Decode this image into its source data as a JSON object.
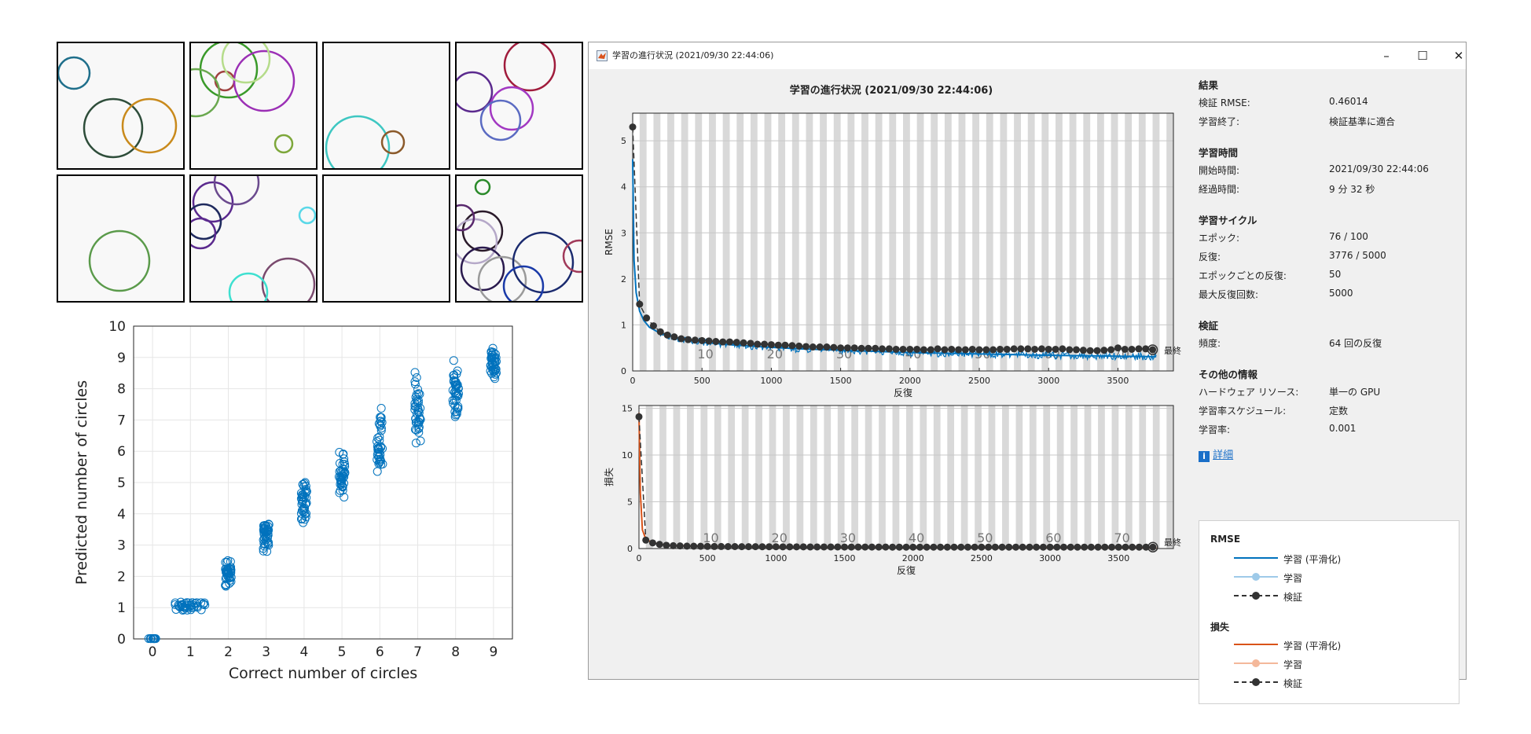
{
  "figure": {
    "circle_images": [
      {
        "circles": [
          {
            "cx": 22,
            "cy": 40,
            "r": 20,
            "color": "#1f6f8b"
          },
          {
            "cx": 72,
            "cy": 110,
            "r": 37,
            "color": "#2e4d3a"
          },
          {
            "cx": 118,
            "cy": 107,
            "r": 34,
            "color": "#c98a1c"
          }
        ]
      },
      {
        "circles": [
          {
            "cx": 50,
            "cy": 35,
            "r": 36,
            "color": "#3a9a2a"
          },
          {
            "cx": 45,
            "cy": 50,
            "r": 12,
            "color": "#a04040"
          },
          {
            "cx": 95,
            "cy": 50,
            "r": 38,
            "color": "#9b2fb5"
          },
          {
            "cx": 72,
            "cy": 22,
            "r": 30,
            "color": "#b5dc8a"
          },
          {
            "cx": 8,
            "cy": 65,
            "r": 30,
            "color": "#6aa84f"
          },
          {
            "cx": 120,
            "cy": 130,
            "r": 11,
            "color": "#7da73a"
          }
        ]
      },
      {
        "circles": [
          {
            "cx": 45,
            "cy": 135,
            "r": 40,
            "color": "#3ec7c2"
          },
          {
            "cx": 90,
            "cy": 128,
            "r": 14,
            "color": "#8b5a2b"
          }
        ]
      },
      {
        "circles": [
          {
            "cx": 95,
            "cy": 30,
            "r": 32,
            "color": "#a01c3c"
          },
          {
            "cx": 22,
            "cy": 64,
            "r": 25,
            "color": "#5b2a8e"
          },
          {
            "cx": 72,
            "cy": 85,
            "r": 27,
            "color": "#a238c2"
          },
          {
            "cx": 58,
            "cy": 100,
            "r": 25,
            "color": "#5b6bc2"
          }
        ]
      },
      {
        "circles": [
          {
            "cx": 80,
            "cy": 110,
            "r": 38,
            "color": "#5a9a4a"
          }
        ]
      },
      {
        "circles": [
          {
            "cx": 30,
            "cy": 35,
            "r": 25,
            "color": "#5b2a8e"
          },
          {
            "cx": 18,
            "cy": 60,
            "r": 22,
            "color": "#1f2a5e"
          },
          {
            "cx": 14,
            "cy": 75,
            "r": 19,
            "color": "#5b2a8e"
          },
          {
            "cx": 60,
            "cy": 10,
            "r": 28,
            "color": "#6b4a8e"
          },
          {
            "cx": 150,
            "cy": 52,
            "r": 10,
            "color": "#5ad8e8"
          },
          {
            "cx": 126,
            "cy": 140,
            "r": 33,
            "color": "#7a4a6e"
          },
          {
            "cx": 75,
            "cy": 150,
            "r": 24,
            "color": "#3ee0d0"
          }
        ]
      },
      {
        "circles": []
      },
      {
        "circles": [
          {
            "cx": 35,
            "cy": 16,
            "r": 9,
            "color": "#2a8a2a"
          },
          {
            "cx": 35,
            "cy": 72,
            "r": 25,
            "color": "#2a1a2a"
          },
          {
            "cx": 25,
            "cy": 85,
            "r": 28,
            "color": "#b5a8c8"
          },
          {
            "cx": 35,
            "cy": 120,
            "r": 27,
            "color": "#2a1a4e"
          },
          {
            "cx": 60,
            "cy": 135,
            "r": 30,
            "color": "#9a9a9a"
          },
          {
            "cx": 112,
            "cy": 112,
            "r": 38,
            "color": "#1a2a6e"
          },
          {
            "cx": 87,
            "cy": 142,
            "r": 25,
            "color": "#1a3aa8"
          },
          {
            "cx": 158,
            "cy": 104,
            "r": 20,
            "color": "#a03a5a"
          },
          {
            "cx": 8,
            "cy": 55,
            "r": 16,
            "color": "#5a2a6e"
          }
        ]
      }
    ]
  },
  "chart_data": [
    {
      "type": "scatter",
      "title": "",
      "xlabel": "Correct number of circles",
      "ylabel": "Predicted number of circles",
      "xlim": [
        -0.5,
        9.5
      ],
      "ylim": [
        0,
        10
      ],
      "xticks": [
        "0",
        "1",
        "2",
        "3",
        "4",
        "5",
        "6",
        "7",
        "8",
        "9"
      ],
      "yticks": [
        "0",
        "1",
        "2",
        "3",
        "4",
        "5",
        "6",
        "7",
        "8",
        "9",
        "10"
      ],
      "grid": true,
      "marker_color": "#0072bd",
      "points_by_category": [
        {
          "x": 0,
          "y_min": 0.0,
          "y_max": 0.02,
          "y_center": 0.01
        },
        {
          "x": 1,
          "y_min": 0.9,
          "y_max": 1.18,
          "y_center": 1.03
        },
        {
          "x": 2,
          "y_min": 1.6,
          "y_max": 2.6,
          "y_center": 2.1
        },
        {
          "x": 3,
          "y_min": 2.4,
          "y_max": 4.0,
          "y_center": 3.1
        },
        {
          "x": 4,
          "y_min": 3.4,
          "y_max": 5.3,
          "y_center": 4.2
        },
        {
          "x": 5,
          "y_min": 4.3,
          "y_max": 6.2,
          "y_center": 5.2
        },
        {
          "x": 6,
          "y_min": 4.9,
          "y_max": 7.7,
          "y_center": 6.4
        },
        {
          "x": 7,
          "y_min": 5.6,
          "y_max": 8.9,
          "y_center": 7.4
        },
        {
          "x": 8,
          "y_min": 6.5,
          "y_max": 9.1,
          "y_center": 8.4
        },
        {
          "x": 9,
          "y_min": 8.0,
          "y_max": 9.6,
          "y_center": 8.9
        }
      ]
    },
    {
      "type": "line",
      "title": "学習の進行状況 (2021/09/30 22:44:06)",
      "xlabel": "反復",
      "ylabel": "RMSE",
      "xlim": [
        0,
        3900
      ],
      "ylim": [
        0,
        5.6
      ],
      "xticks": [
        0,
        500,
        1000,
        1500,
        2000,
        2500,
        3000,
        3500
      ],
      "yticks": [
        0,
        1,
        2,
        3,
        4,
        5
      ],
      "epoch_labels": [
        "10",
        "20",
        "30",
        "40",
        "50",
        "60",
        "70"
      ],
      "final_label": "最終",
      "series": [
        {
          "name": "学習 (平滑化)",
          "color": "#0072bd",
          "x": [
            0,
            10,
            25,
            50,
            80,
            120,
            180,
            250,
            350,
            500,
            700,
            900,
            1200,
            1600,
            2000,
            2500,
            3000,
            3500,
            3776
          ],
          "y": [
            4.6,
            2.4,
            1.7,
            1.3,
            1.1,
            0.95,
            0.85,
            0.78,
            0.7,
            0.62,
            0.57,
            0.53,
            0.48,
            0.44,
            0.4,
            0.37,
            0.34,
            0.32,
            0.31
          ]
        },
        {
          "name": "検証",
          "color": "#333333",
          "x": [
            0,
            50,
            100,
            150,
            200,
            250,
            300,
            350,
            400,
            450,
            500,
            550,
            600,
            650,
            700,
            750,
            800,
            850,
            900,
            950,
            1000,
            1050,
            1100,
            1150,
            1200,
            1250,
            1300,
            1350,
            1400,
            1450,
            1500,
            1550,
            1600,
            1650,
            1700,
            1750,
            1800,
            1850,
            1900,
            1950,
            2000,
            2050,
            2100,
            2150,
            2200,
            2250,
            2300,
            2350,
            2400,
            2450,
            2500,
            2550,
            2600,
            2650,
            2700,
            2750,
            2800,
            2850,
            2900,
            2950,
            3000,
            3050,
            3100,
            3150,
            3200,
            3250,
            3300,
            3350,
            3400,
            3450,
            3500,
            3550,
            3600,
            3650,
            3700,
            3750
          ],
          "y": [
            5.3,
            1.45,
            1.15,
            0.98,
            0.85,
            0.78,
            0.74,
            0.7,
            0.68,
            0.67,
            0.66,
            0.65,
            0.64,
            0.63,
            0.63,
            0.62,
            0.61,
            0.6,
            0.58,
            0.58,
            0.57,
            0.56,
            0.56,
            0.55,
            0.54,
            0.53,
            0.52,
            0.52,
            0.52,
            0.51,
            0.5,
            0.5,
            0.5,
            0.49,
            0.49,
            0.49,
            0.48,
            0.48,
            0.47,
            0.47,
            0.47,
            0.47,
            0.46,
            0.46,
            0.48,
            0.46,
            0.47,
            0.46,
            0.46,
            0.47,
            0.46,
            0.46,
            0.46,
            0.47,
            0.47,
            0.48,
            0.48,
            0.48,
            0.47,
            0.48,
            0.47,
            0.47,
            0.48,
            0.46,
            0.46,
            0.45,
            0.44,
            0.44,
            0.45,
            0.46,
            0.5,
            0.47,
            0.47,
            0.48,
            0.48,
            0.46
          ]
        }
      ]
    },
    {
      "type": "line",
      "xlabel": "反復",
      "ylabel": "損失",
      "xlim": [
        0,
        3900
      ],
      "ylim": [
        0,
        15.3
      ],
      "xticks": [
        0,
        500,
        1000,
        1500,
        2000,
        2500,
        3000,
        3500
      ],
      "yticks": [
        0,
        5,
        10,
        15
      ],
      "epoch_labels": [
        "10",
        "20",
        "30",
        "40",
        "50",
        "60",
        "70"
      ],
      "final_label": "最終",
      "series": [
        {
          "name": "学習 (平滑化)",
          "color": "#d95319",
          "x": [
            0,
            10,
            25,
            50,
            100,
            200,
            400,
            800,
            1500,
            2500,
            3776
          ],
          "y": [
            14.5,
            6,
            2.0,
            1.0,
            0.6,
            0.35,
            0.25,
            0.17,
            0.12,
            0.1,
            0.09
          ]
        },
        {
          "name": "検証",
          "color": "#333333",
          "x": [
            0,
            50,
            100,
            150,
            200,
            250,
            300,
            350,
            400,
            450,
            500,
            550,
            600,
            650,
            700,
            750,
            800,
            850,
            900,
            950,
            1000,
            1050,
            1100,
            1150,
            1200,
            1250,
            1300,
            1350,
            1400,
            1450,
            1500,
            1550,
            1600,
            1650,
            1700,
            1750,
            1800,
            1850,
            1900,
            1950,
            2000,
            2050,
            2100,
            2150,
            2200,
            2250,
            2300,
            2350,
            2400,
            2450,
            2500,
            2550,
            2600,
            2650,
            2700,
            2750,
            2800,
            2850,
            2900,
            2950,
            3000,
            3050,
            3100,
            3150,
            3200,
            3250,
            3300,
            3350,
            3400,
            3450,
            3500,
            3550,
            3600,
            3650,
            3700,
            3750
          ],
          "y": [
            14.1,
            0.9,
            0.6,
            0.45,
            0.35,
            0.3,
            0.28,
            0.26,
            0.25,
            0.24,
            0.23,
            0.22,
            0.22,
            0.21,
            0.21,
            0.2,
            0.2,
            0.2,
            0.19,
            0.19,
            0.19,
            0.18,
            0.18,
            0.18,
            0.18,
            0.17,
            0.17,
            0.17,
            0.17,
            0.17,
            0.16,
            0.16,
            0.16,
            0.16,
            0.16,
            0.16,
            0.16,
            0.15,
            0.15,
            0.15,
            0.15,
            0.15,
            0.15,
            0.15,
            0.15,
            0.15,
            0.15,
            0.15,
            0.15,
            0.15,
            0.15,
            0.15,
            0.15,
            0.15,
            0.15,
            0.15,
            0.15,
            0.15,
            0.15,
            0.15,
            0.15,
            0.15,
            0.15,
            0.15,
            0.15,
            0.15,
            0.15,
            0.15,
            0.15,
            0.15,
            0.15,
            0.15,
            0.15,
            0.15,
            0.15,
            0.15
          ]
        }
      ]
    }
  ],
  "window": {
    "title": "学習の進行状況 (2021/09/30 22:44:06)",
    "minimize": "–",
    "maximize": "☐",
    "close": "✕",
    "app_icon": "matlab-icon"
  },
  "info": {
    "results_header": "結果",
    "val_rmse_label": "検証 RMSE:",
    "val_rmse_value": "0.46014",
    "finish_label": "学習終了:",
    "finish_value": "検証基準に適合",
    "time_header": "学習時間",
    "start_label": "開始時間:",
    "start_value": "2021/09/30 22:44:06",
    "elapsed_label": "経過時間:",
    "elapsed_value": "9 分 32 秒",
    "cycle_header": "学習サイクル",
    "epoch_label": "エポック:",
    "epoch_value": "76 / 100",
    "iter_label": "反復:",
    "iter_value": "3776 / 5000",
    "iter_per_epoch_label": "エポックごとの反復:",
    "iter_per_epoch_value": "50",
    "max_iter_label": "最大反復回数:",
    "max_iter_value": "5000",
    "validation_header": "検証",
    "freq_label": "頻度:",
    "freq_value": "64 回の反復",
    "other_header": "その他の情報",
    "hw_label": "ハードウェア リソース:",
    "hw_value": "単一の GPU",
    "lr_sched_label": "学習率スケジュール:",
    "lr_sched_value": "定数",
    "lr_label": "学習率:",
    "lr_value": "0.001",
    "details_link": "詳細"
  },
  "legend": {
    "rmse_header": "RMSE",
    "loss_header": "損失",
    "items": [
      "学習 (平滑化)",
      "学習",
      "検証"
    ],
    "colors": {
      "rmse_smooth": "#0072bd",
      "rmse_raw": "#9ecae9",
      "loss_smooth": "#d95319",
      "loss_raw": "#f4b89a",
      "val": "#333333"
    }
  }
}
